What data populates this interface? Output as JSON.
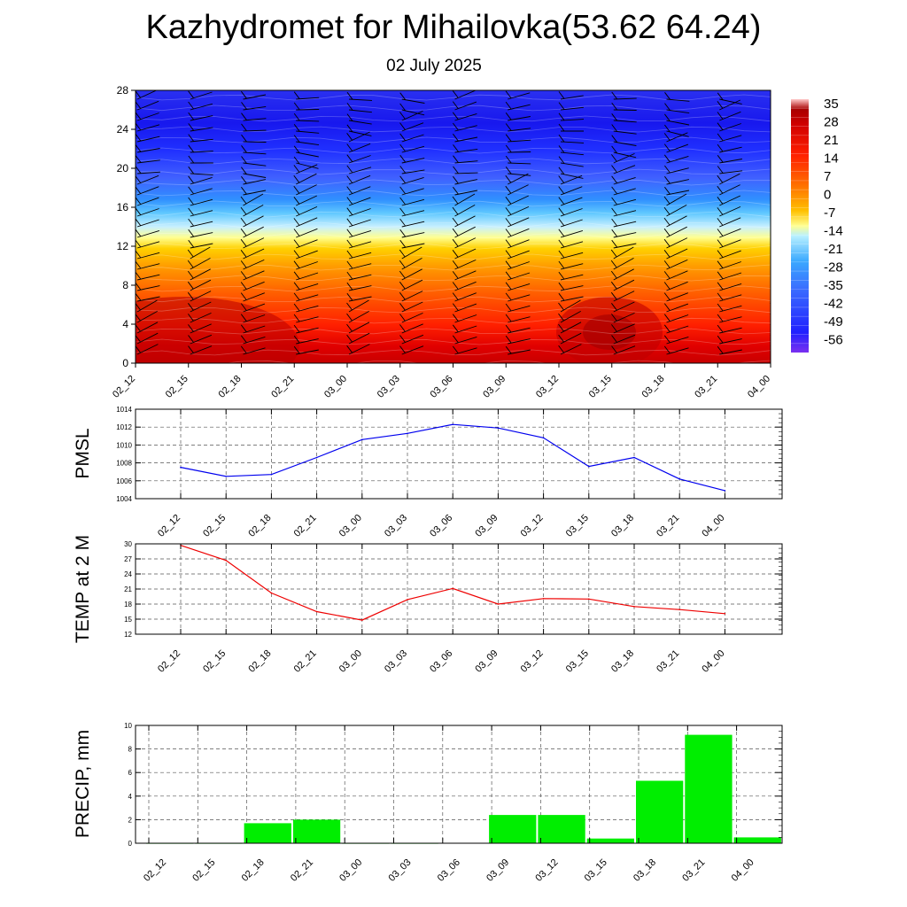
{
  "header": {
    "title": "Kazhydromet for Mihailovka(53.62 64.24)",
    "date": "02 July 2025"
  },
  "time_labels": [
    "02_12",
    "02_15",
    "02_18",
    "02_21",
    "03_00",
    "03_03",
    "03_06",
    "03_09",
    "03_12",
    "03_15",
    "03_18",
    "03_21",
    "04_00"
  ],
  "chart_data": [
    {
      "type": "heatmap",
      "title": "",
      "ylabel": "",
      "y_ticks": [
        0,
        4,
        8,
        12,
        16,
        20,
        24,
        28
      ],
      "ylim": [
        0,
        28
      ],
      "colorbar_ticks": [
        35,
        28,
        21,
        14,
        7,
        0,
        -7,
        -14,
        -21,
        -28,
        -35,
        -42,
        -49,
        -56
      ],
      "colorscale": [
        "#7a2cf0",
        "#2020ff",
        "#3060ff",
        "#3aa0ff",
        "#70d8ff",
        "#d8f8ff",
        "#ffff80",
        "#ffd000",
        "#ff8000",
        "#ff3000",
        "#e00000",
        "#a00000",
        "#ffd0d0"
      ],
      "description_values": {
        "temperature_by_height_band": [
          {
            "height": 0,
            "value": 28
          },
          {
            "height": 4,
            "value": 21
          },
          {
            "height": 8,
            "value": 7
          },
          {
            "height": 12,
            "value": -7
          },
          {
            "height": 14,
            "value": -14
          },
          {
            "height": 16,
            "value": -28
          },
          {
            "height": 20,
            "value": -49
          },
          {
            "height": 24,
            "value": -56
          },
          {
            "height": 28,
            "value": -49
          }
        ]
      }
    },
    {
      "type": "line",
      "ylabel": "PMSL",
      "ylim": [
        1004,
        1014
      ],
      "y_ticks": [
        1004,
        1006,
        1008,
        1010,
        1012,
        1014
      ],
      "series": [
        {
          "values": [
            1007.5,
            1006.5,
            1006.7,
            1008.6,
            1010.6,
            1011.3,
            1012.3,
            1011.9,
            1010.8,
            1007.6,
            1008.6,
            1006.2,
            1004.9
          ],
          "color": "#0000ee"
        }
      ]
    },
    {
      "type": "line",
      "ylabel": "TEMP at 2 M",
      "ylim": [
        12,
        30
      ],
      "y_ticks": [
        12,
        15,
        18,
        21,
        24,
        27,
        30
      ],
      "series": [
        {
          "values": [
            29.7,
            26.7,
            20.2,
            16.5,
            14.8,
            18.9,
            21.1,
            18.0,
            19.1,
            19.0,
            17.5,
            16.9,
            16.1
          ],
          "color": "#ee0000"
        }
      ]
    },
    {
      "type": "bar",
      "ylabel": "PRECIP, mm",
      "ylim": [
        0,
        10
      ],
      "y_ticks": [
        0,
        2,
        4,
        6,
        8,
        10
      ],
      "values": [
        0,
        0,
        1.7,
        2.0,
        0,
        0,
        0.03,
        2.4,
        2.4,
        0.4,
        5.3,
        9.2,
        0.5
      ],
      "color": "#00ee00"
    }
  ]
}
